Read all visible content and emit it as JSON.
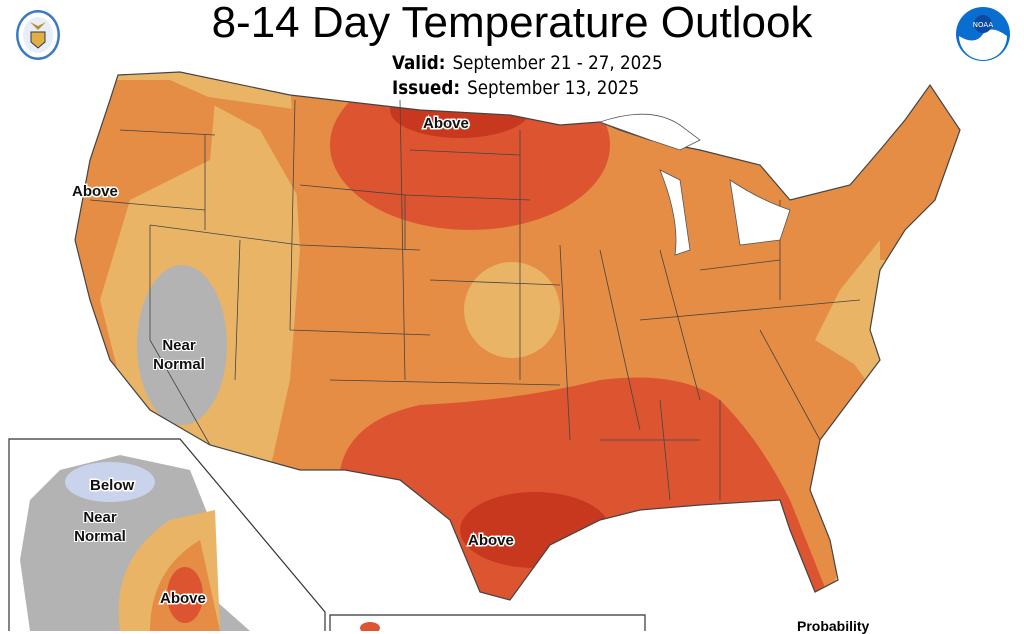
{
  "header": {
    "title": "8-14 Day Temperature Outlook",
    "valid_label": "Valid:",
    "valid_value": "September 21 - 27, 2025",
    "issued_label": "Issued:",
    "issued_value": "September 13, 2025"
  },
  "logos": {
    "left": "department-of-commerce-seal",
    "right": "noaa-logo",
    "noaa_text": "NOAA"
  },
  "map_labels": {
    "above_north": "Above",
    "above_west": "Above",
    "near_normal_west": "Near Normal",
    "above_texas": "Above",
    "below_alaska": "Below",
    "near_normal_alaska": "Near Normal",
    "above_alaska": "Above"
  },
  "legend": {
    "title": "Probability"
  },
  "colors": {
    "above_33_40": "#e9b466",
    "above_40_50": "#e58c45",
    "above_50_60": "#dc5530",
    "above_60_70": "#c8381e",
    "near_normal": "#b3b3b3",
    "below_33_40": "#c9d3ec"
  }
}
